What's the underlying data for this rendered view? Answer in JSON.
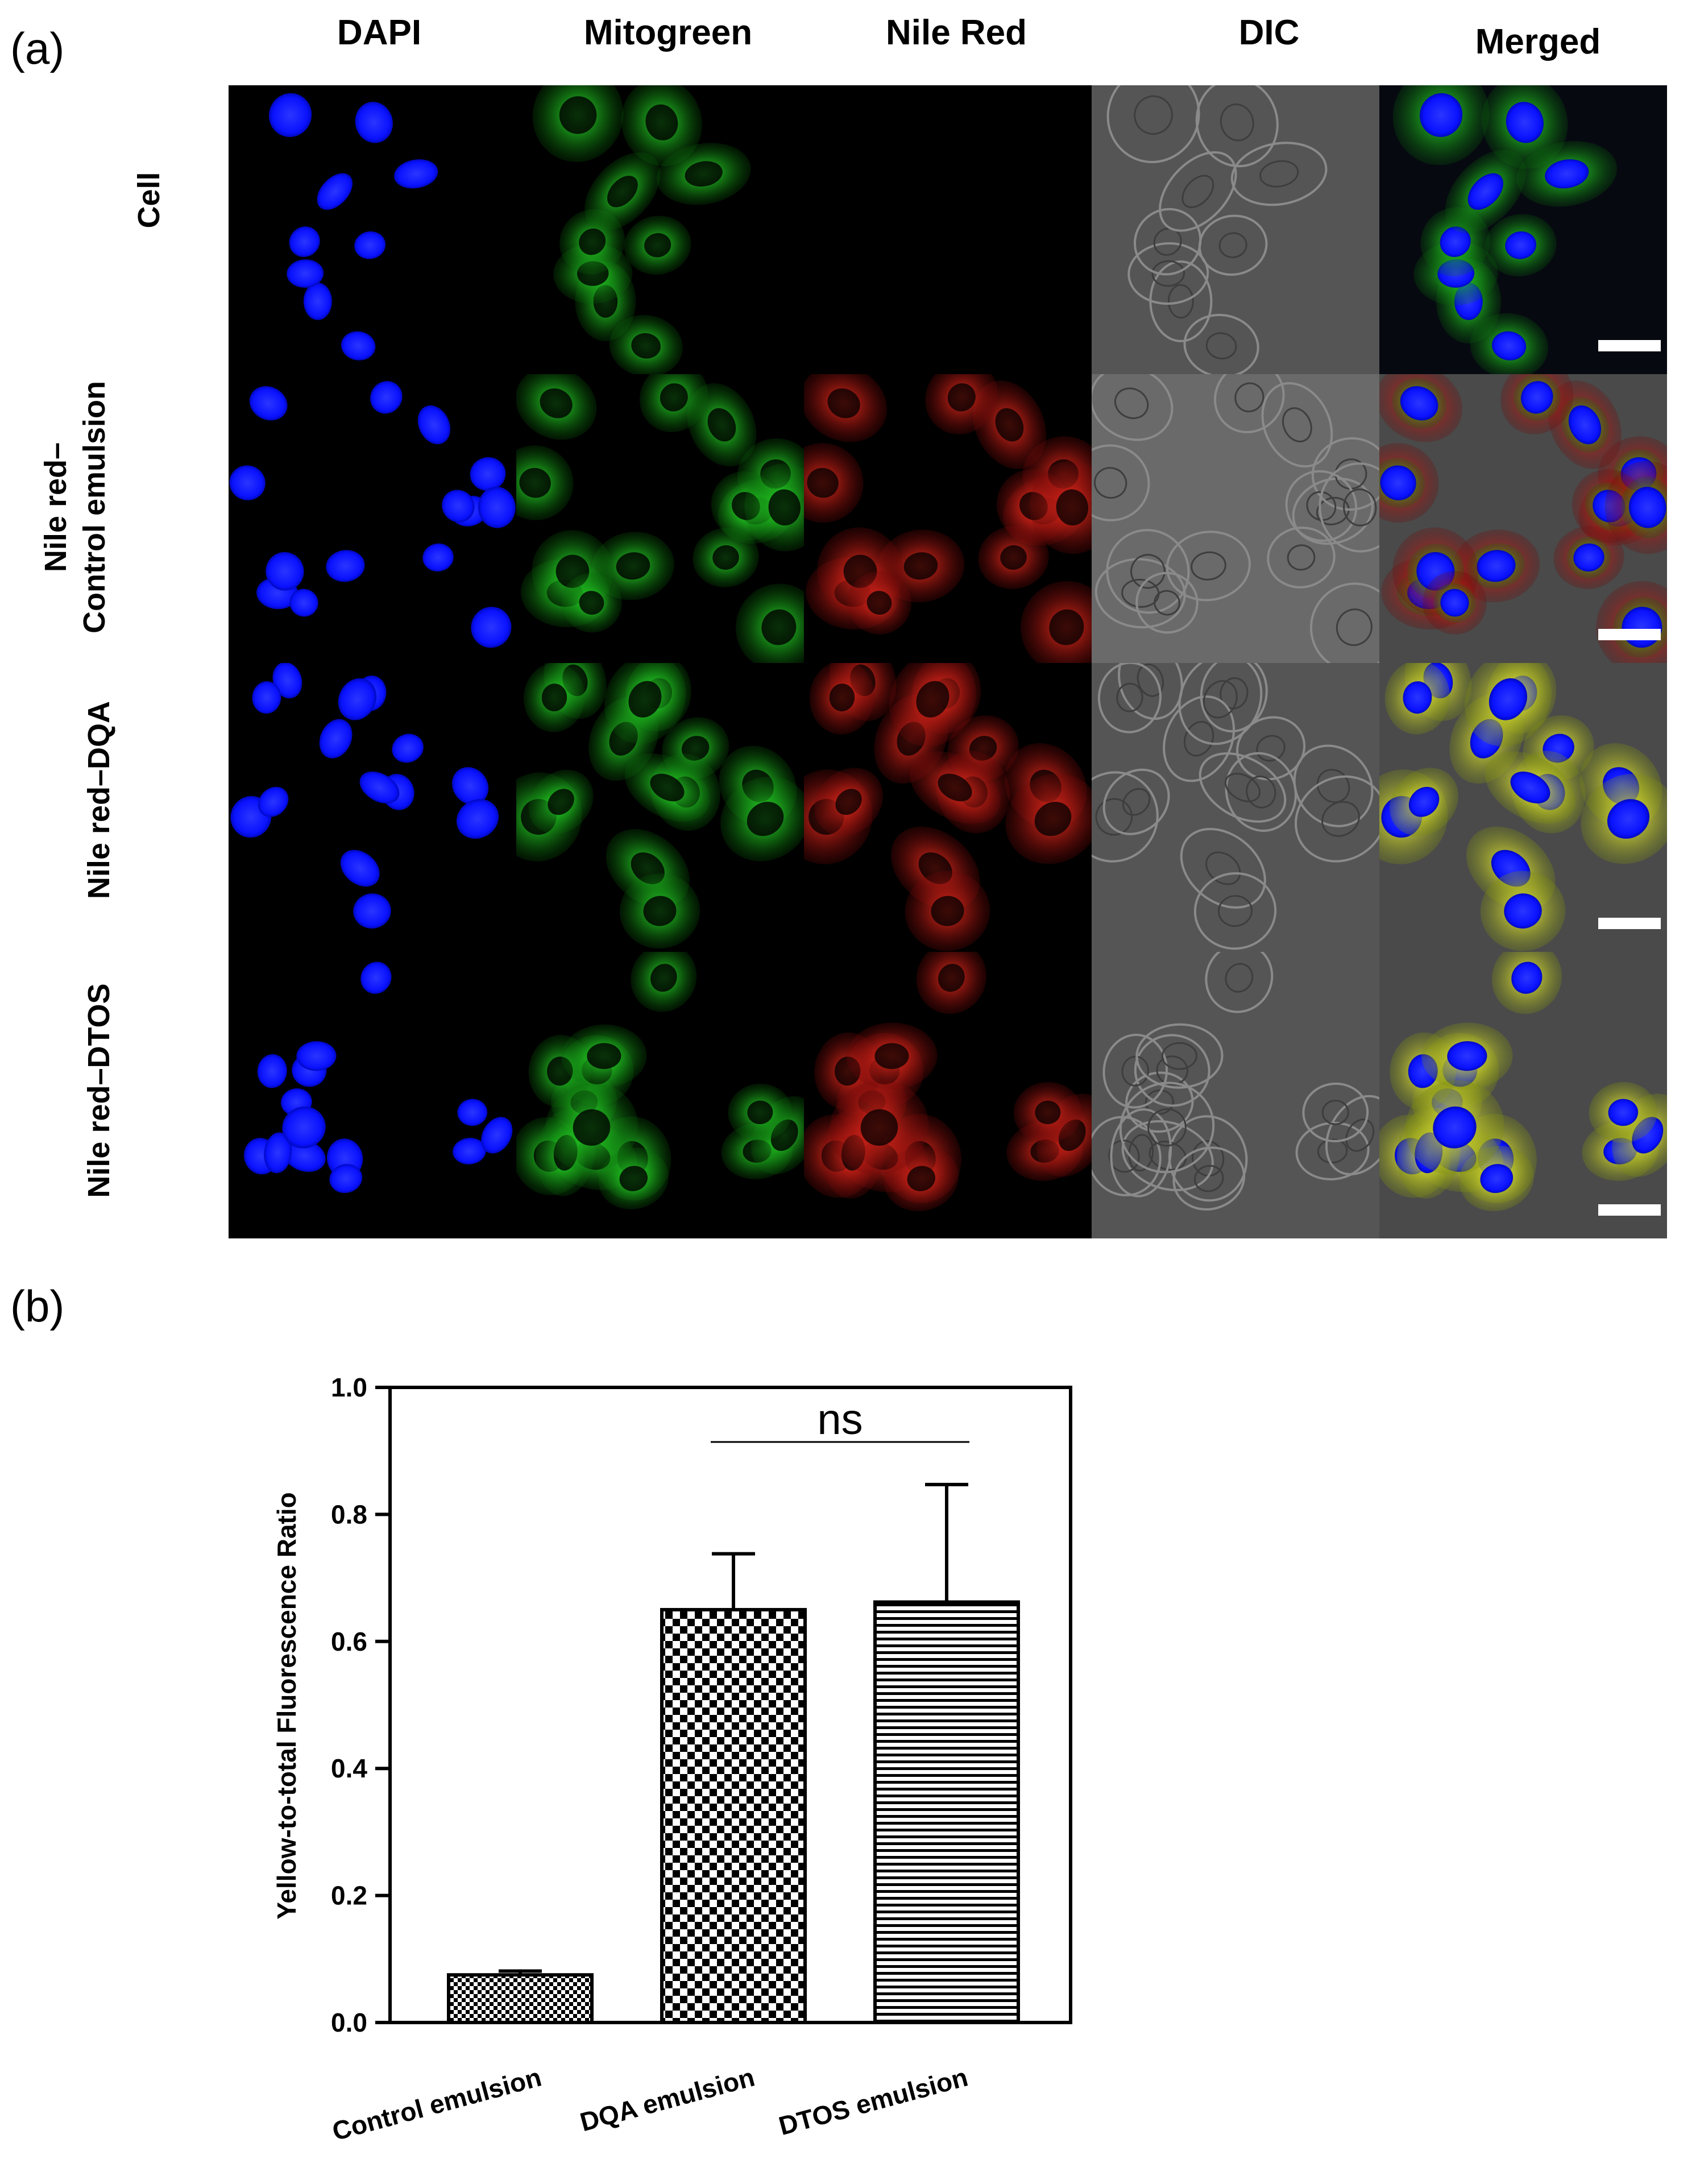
{
  "figure": {
    "panel_a_label": "(a)",
    "panel_b_label": "(b)",
    "columns": [
      "DAPI",
      "Mitogreen",
      "Nile Red",
      "DIC",
      "Merged"
    ],
    "rows": [
      {
        "label_line1": "Cell",
        "label_line2": ""
      },
      {
        "label_line1": "Nile red–",
        "label_line2": "Control emulsion"
      },
      {
        "label_line1": "Nile red–DQA",
        "label_line2": ""
      },
      {
        "label_line1": "Nile red–DTOS",
        "label_line2": ""
      }
    ],
    "colors": {
      "dapi": "#0a12ff",
      "mitogreen": "#18d41a",
      "nilered": "#ff1a10",
      "dic": "#5a5a5a",
      "merged_bg": "#202020",
      "yellow": "#e8e020"
    }
  },
  "chart_data": {
    "type": "bar",
    "categories": [
      "Control emulsion",
      "DQA emulsion",
      "DTOS emulsion"
    ],
    "values": [
      0.075,
      0.65,
      0.662
    ],
    "errors": [
      0.006,
      0.088,
      0.185
    ],
    "patterns": [
      "fine-checker",
      "coarse-checker",
      "horizontal-lines"
    ],
    "ylabel": "Yellow-to-total Fluorescence Ratio",
    "ylim": [
      0.0,
      1.0
    ],
    "yticks": [
      "0.0",
      "0.2",
      "0.4",
      "0.6",
      "0.8",
      "1.0"
    ],
    "significance": {
      "label": "ns",
      "from": "DQA emulsion",
      "to": "DTOS emulsion"
    },
    "grid": false
  }
}
